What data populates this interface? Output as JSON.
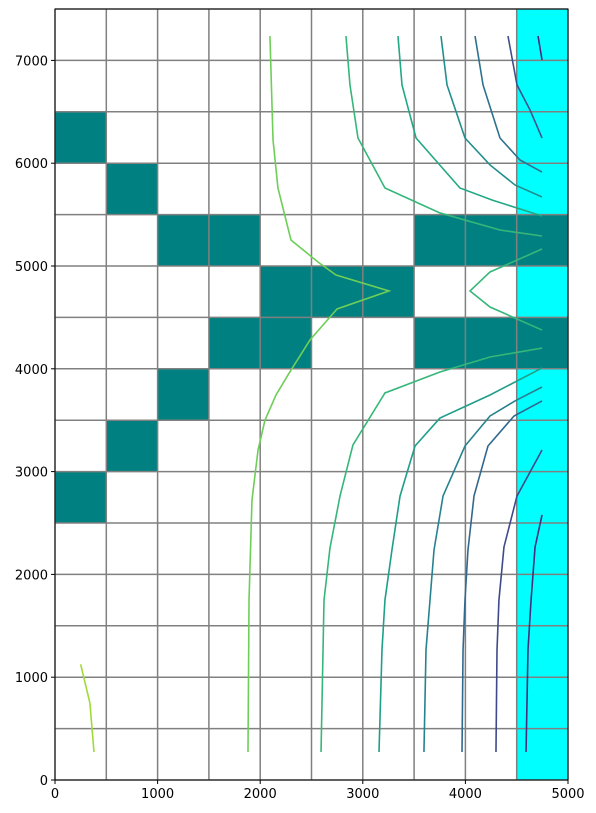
{
  "chart_data": {
    "type": "contour",
    "xlim": [
      0,
      5000
    ],
    "ylim": [
      0,
      7500
    ],
    "xticks": [
      0,
      1000,
      2000,
      3000,
      4000,
      5000
    ],
    "yticks": [
      0,
      1000,
      2000,
      3000,
      4000,
      5000,
      6000,
      7000
    ],
    "gridlines_x": [
      0,
      500,
      1000,
      1500,
      2000,
      2500,
      3000,
      3500,
      4000,
      4500,
      5000
    ],
    "gridlines_y": [
      0,
      500,
      1000,
      1500,
      2000,
      2500,
      3000,
      3500,
      4000,
      4500,
      5000,
      5500,
      6000,
      6500,
      7000,
      7500
    ],
    "grid_color": "#808080",
    "constant_head_color": "#00ffff",
    "constant_head_cells": [
      [
        4500,
        0,
        5000,
        7500
      ]
    ],
    "inactive_color": "#008080",
    "inactive_cells": [
      [
        0,
        6000,
        500,
        6500
      ],
      [
        500,
        5500,
        1000,
        6000
      ],
      [
        1000,
        5000,
        1500,
        5500
      ],
      [
        1500,
        5000,
        2000,
        5500
      ],
      [
        3500,
        5000,
        4000,
        5500
      ],
      [
        4000,
        5000,
        4500,
        5500
      ],
      [
        4500,
        5000,
        5000,
        5500
      ],
      [
        2000,
        4500,
        2500,
        5000
      ],
      [
        2500,
        4500,
        3000,
        5000
      ],
      [
        3000,
        4500,
        3500,
        5000
      ],
      [
        1500,
        4000,
        2000,
        4500
      ],
      [
        2000,
        4000,
        2500,
        4500
      ],
      [
        3500,
        4000,
        4000,
        4500
      ],
      [
        4000,
        4000,
        4500,
        4500
      ],
      [
        4500,
        4000,
        5000,
        4500
      ],
      [
        1000,
        3500,
        1500,
        4000
      ],
      [
        500,
        3000,
        1000,
        3500
      ],
      [
        0,
        2500,
        500,
        3000
      ]
    ],
    "lines": [
      {
        "color": "#a0da39",
        "x": [
          250,
          340,
          380
        ],
        "y": [
          1125,
          750,
          272
        ]
      },
      {
        "color": "#6ece58",
        "x": [
          1881,
          1891,
          1920,
          1979,
          2047,
          2154,
          2271,
          2485,
          2749,
          3255,
          2739,
          2563,
          2300,
          2173,
          2125,
          2095
        ],
        "y": [
          272,
          1751,
          2724,
          3210,
          3502,
          3745,
          3940,
          4280,
          4582,
          4757,
          4912,
          5039,
          5253,
          5759,
          6226,
          7237
        ]
      },
      {
        "color": "#35b779",
        "x": [
          2593,
          2622,
          2680,
          2778,
          2904,
          3216,
          3752,
          4240,
          4747
        ],
        "y": [
          272,
          1751,
          2257,
          2763,
          3259,
          3765,
          3969,
          4115,
          4202
        ]
      },
      {
        "color": "#35b779",
        "x": [
          2836,
          2875,
          2953,
          3216,
          3752,
          4337,
          4747
        ],
        "y": [
          7237,
          6761,
          6245,
          5759,
          5516,
          5350,
          5292
        ]
      },
      {
        "color": "#35b779",
        "x": [
          4747,
          4240,
          4045,
          4240,
          4747
        ],
        "y": [
          5165,
          4942,
          4757,
          4601,
          4377
        ]
      },
      {
        "color": "#1f9e89",
        "x": [
          3158,
          3187,
          3216,
          3284,
          3363,
          3509,
          3752,
          4240,
          4747
        ],
        "y": [
          272,
          1265,
          1751,
          2237,
          2763,
          3249,
          3521,
          3745,
          4008
        ]
      },
      {
        "color": "#22a884",
        "x": [
          3343,
          3382,
          3519,
          3947,
          4259,
          4747
        ],
        "y": [
          7237,
          6761,
          6245,
          5759,
          5642,
          5486
        ]
      },
      {
        "color": "#26828e",
        "x": [
          3596,
          3616,
          3655,
          3694,
          3782,
          3996,
          4240,
          4483,
          4747
        ],
        "y": [
          272,
          1265,
          1751,
          2237,
          2763,
          3249,
          3541,
          3687,
          3823
        ]
      },
      {
        "color": "#218f8d",
        "x": [
          3762,
          3821,
          3996,
          4240,
          4483,
          4747
        ],
        "y": [
          7237,
          6761,
          6245,
          5983,
          5788,
          5671
        ]
      },
      {
        "color": "#31688e",
        "x": [
          3967,
          3977,
          3996,
          4025,
          4084,
          4220,
          4474,
          4747
        ],
        "y": [
          272,
          1265,
          1751,
          2237,
          2763,
          3249,
          3541,
          3687
        ]
      },
      {
        "color": "#2c728e",
        "x": [
          4094,
          4172,
          4337,
          4532,
          4747
        ],
        "y": [
          7237,
          6761,
          6245,
          6031,
          5914
        ]
      },
      {
        "color": "#3e4a89",
        "x": [
          4298,
          4308,
          4327,
          4376,
          4503,
          4747
        ],
        "y": [
          272,
          1265,
          1751,
          2267,
          2763,
          3210
        ]
      },
      {
        "color": "#3b528b",
        "x": [
          4415,
          4503,
          4630,
          4747
        ],
        "y": [
          7237,
          6761,
          6518,
          6245
        ]
      },
      {
        "color": "#472d7b",
        "x": [
          4591,
          4610,
          4640,
          4679,
          4747
        ],
        "y": [
          272,
          1265,
          1751,
          2267,
          2578
        ]
      },
      {
        "color": "#482878",
        "x": [
          4708,
          4747
        ],
        "y": [
          7237,
          7004
        ]
      }
    ]
  }
}
